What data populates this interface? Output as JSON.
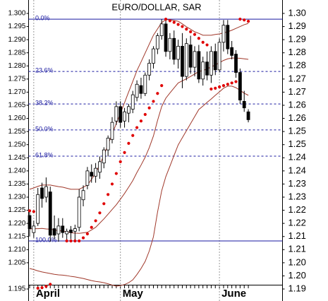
{
  "chart_data": {
    "type": "candlestick",
    "title": "EURO/DOLLAR, SAR",
    "categories": [
      null,
      "April",
      null,
      null,
      null,
      null,
      null,
      null,
      null,
      null,
      null,
      null,
      null,
      null,
      null,
      null,
      null,
      null,
      null,
      null,
      null,
      null,
      "May",
      null,
      null,
      null,
      null,
      null,
      null,
      null,
      null,
      null,
      null,
      null,
      null,
      null,
      null,
      null,
      null,
      null,
      null,
      null,
      null,
      null,
      null,
      null,
      "June",
      null,
      null,
      null,
      null,
      null,
      null,
      null
    ],
    "open": [
      1.223,
      1.2165,
      1.22,
      1.2335,
      1.23,
      1.232,
      1.218,
      1.216,
      1.219,
      1.216,
      1.2175,
      1.217,
      1.2185,
      1.229,
      1.2345,
      1.2395,
      1.238,
      1.2395,
      1.243,
      1.248,
      1.252,
      1.259,
      1.2645,
      1.259,
      1.262,
      1.2635,
      1.268,
      1.2725,
      1.2695,
      1.2765,
      1.281,
      1.2865,
      1.2915,
      1.296,
      1.2855,
      1.2905,
      1.2825,
      1.2875,
      1.276,
      1.288,
      1.2795,
      1.2855,
      1.275,
      1.2815,
      1.2765,
      1.2855,
      1.2785,
      1.289,
      1.2955,
      1.287,
      1.2845,
      1.2775,
      1.2665,
      1.2625
    ],
    "high": [
      1.225,
      1.221,
      1.2335,
      1.2355,
      1.2375,
      1.234,
      1.223,
      1.222,
      1.222,
      1.218,
      1.219,
      1.2195,
      1.233,
      1.2345,
      1.2415,
      1.2425,
      1.243,
      1.2455,
      1.249,
      1.2535,
      1.2605,
      1.2665,
      1.2665,
      1.264,
      1.2655,
      1.2705,
      1.2745,
      1.2755,
      1.2775,
      1.2825,
      1.2875,
      1.2925,
      1.2978,
      1.2975,
      1.2925,
      1.2935,
      1.29,
      1.2925,
      1.2905,
      1.2915,
      1.2875,
      1.288,
      1.2835,
      1.2855,
      1.2875,
      1.2885,
      1.2905,
      1.2975,
      1.2975,
      1.2895,
      1.286,
      1.279,
      1.2705,
      1.2635
    ],
    "low": [
      1.215,
      1.2145,
      1.219,
      1.226,
      1.228,
      1.213,
      1.214,
      1.213,
      1.2145,
      1.2135,
      1.214,
      1.2133,
      1.217,
      1.2265,
      1.233,
      1.2355,
      1.2355,
      1.237,
      1.241,
      1.2455,
      1.2505,
      1.2575,
      1.2565,
      1.2565,
      1.2585,
      1.262,
      1.2665,
      1.2675,
      1.2685,
      1.2745,
      1.279,
      1.2845,
      1.29,
      1.2835,
      1.2825,
      1.2805,
      1.279,
      1.2715,
      1.2745,
      1.277,
      1.276,
      1.2735,
      1.2725,
      1.2745,
      1.2735,
      1.2765,
      1.2775,
      1.2855,
      1.2845,
      1.2825,
      1.2755,
      1.2655,
      1.2625,
      1.2585
    ],
    "close": [
      1.218,
      1.219,
      1.231,
      1.2295,
      1.234,
      1.2155,
      1.2155,
      1.219,
      1.2165,
      1.217,
      1.2165,
      1.218,
      1.23,
      1.2325,
      1.24,
      1.238,
      1.241,
      1.2435,
      1.248,
      1.2525,
      1.2585,
      1.2645,
      1.2585,
      1.2625,
      1.2645,
      1.269,
      1.273,
      1.2695,
      1.2765,
      1.281,
      1.2865,
      1.2915,
      1.296,
      1.2855,
      1.2905,
      1.2825,
      1.2875,
      1.276,
      1.2885,
      1.2795,
      1.2855,
      1.275,
      1.2815,
      1.2765,
      1.2855,
      1.2785,
      1.289,
      1.2955,
      1.2865,
      1.284,
      1.2775,
      1.267,
      1.264,
      1.2595
    ],
    "up_color": "#ffffff",
    "down_color": "#000000",
    "bands": {
      "color": "#a0382a",
      "upper": [
        1.233,
        1.2335,
        1.2341,
        1.2346,
        1.2346,
        1.2346,
        1.2343,
        1.234,
        1.2338,
        1.2334,
        1.233,
        1.233,
        1.233,
        1.2338,
        1.2346,
        1.2368,
        1.2391,
        1.2425,
        1.2459,
        1.25,
        1.254,
        1.258,
        1.262,
        1.266,
        1.2701,
        1.2741,
        1.2782,
        1.2815,
        1.2849,
        1.2883,
        1.2917,
        1.2941,
        1.2965,
        1.2976,
        1.2976,
        1.2973,
        1.297,
        1.296,
        1.2949,
        1.294,
        1.293,
        1.2924,
        1.2917,
        1.2917,
        1.2917,
        1.292,
        1.2922,
        1.2926,
        1.293,
        1.2936,
        1.2943,
        1.295,
        1.2957,
        1.2962
      ],
      "middle": [
        1.2179,
        1.218,
        1.218,
        1.2181,
        1.2179,
        1.2178,
        1.2175,
        1.2172,
        1.2171,
        1.2168,
        1.2164,
        1.2163,
        1.2162,
        1.2164,
        1.2166,
        1.2175,
        1.2185,
        1.2201,
        1.2217,
        1.2235,
        1.2253,
        1.2271,
        1.2292,
        1.2314,
        1.2338,
        1.2363,
        1.2394,
        1.2422,
        1.2452,
        1.2489,
        1.2533,
        1.2592,
        1.2645,
        1.2677,
        1.2697,
        1.2716,
        1.2735,
        1.2743,
        1.2751,
        1.276,
        1.2769,
        1.2779,
        1.2782,
        1.2789,
        1.2796,
        1.2804,
        1.2812,
        1.2821,
        1.2827,
        1.283,
        1.283,
        1.2829,
        1.2827,
        1.2825
      ],
      "lower": [
        1.2028,
        1.2024,
        1.2019,
        1.2015,
        1.2012,
        1.2009,
        1.2006,
        1.2004,
        1.2003,
        1.2001,
        1.1998,
        1.1996,
        1.1993,
        1.199,
        1.1986,
        1.1982,
        1.1979,
        1.1977,
        1.1974,
        1.197,
        1.1965,
        1.1961,
        1.1963,
        1.1967,
        1.1974,
        1.1985,
        1.2005,
        1.2028,
        1.2055,
        1.2095,
        1.2149,
        1.2243,
        1.2324,
        1.2378,
        1.2418,
        1.2459,
        1.2499,
        1.2526,
        1.2553,
        1.258,
        1.2607,
        1.2634,
        1.2647,
        1.2661,
        1.2674,
        1.2688,
        1.2701,
        1.2715,
        1.2723,
        1.2723,
        1.2717,
        1.2707,
        1.2696,
        1.2688
      ]
    },
    "sar": {
      "color": "#e00000",
      "values": [
        1.2248,
        1.2245,
        1.1953,
        1.1955,
        1.196,
        1.1968,
        null,
        null,
        null,
        1.2133,
        1.2133,
        1.2133,
        1.2133,
        1.2145,
        1.216,
        1.2185,
        1.221,
        1.224,
        1.2275,
        1.231,
        1.235,
        1.239,
        1.2435,
        1.247,
        1.2505,
        1.2535,
        1.2565,
        1.259,
        1.2615,
        1.264,
        1.2665,
        1.2695,
        1.2725,
        1.2978,
        1.2972,
        1.2966,
        1.2958,
        1.295,
        1.294,
        1.293,
        1.292,
        1.2905,
        1.289,
        1.288,
        1.2712,
        1.2715,
        1.272,
        1.2725,
        1.273,
        1.2735,
        1.274,
        1.2978,
        1.2975,
        1.297
      ]
    },
    "fib_levels": [
      {
        "label": "0.0%",
        "value": 1.2978,
        "style": "solid"
      },
      {
        "label": "23.6%",
        "value": 1.2779,
        "style": "dashed"
      },
      {
        "label": "38.2%",
        "value": 1.2655,
        "style": "dashed"
      },
      {
        "label": "50.0%",
        "value": 1.2556,
        "style": "dashed"
      },
      {
        "label": "61.8%",
        "value": 1.2456,
        "style": "dashed"
      },
      {
        "label": "100.0%",
        "value": 1.2133,
        "style": "solid"
      }
    ],
    "fib_color": "#1a1aa0",
    "ylim": [
      1.1925,
      1.3025
    ],
    "yticks": [
      {
        "value": 1.3,
        "label": "1.300"
      },
      {
        "value": 1.295,
        "label": "1.295"
      },
      {
        "value": 1.29,
        "label": "1.290"
      },
      {
        "value": 1.285,
        "label": "1.285"
      },
      {
        "value": 1.28,
        "label": "1.280"
      },
      {
        "value": 1.275,
        "label": "1.275"
      },
      {
        "value": 1.27,
        "label": "1.270"
      },
      {
        "value": 1.265,
        "label": "1.265"
      },
      {
        "value": 1.26,
        "label": "1.260"
      },
      {
        "value": 1.255,
        "label": "1.255"
      },
      {
        "value": 1.25,
        "label": "1.250"
      },
      {
        "value": 1.245,
        "label": "1.245"
      },
      {
        "value": 1.24,
        "label": "1.240"
      },
      {
        "value": 1.235,
        "label": "1.235"
      },
      {
        "value": 1.23,
        "label": "1.230"
      },
      {
        "value": 1.225,
        "label": "1.225"
      },
      {
        "value": 1.22,
        "label": "1.220"
      },
      {
        "value": 1.215,
        "label": "1.215"
      },
      {
        "value": 1.21,
        "label": "1.210"
      },
      {
        "value": 1.205,
        "label": "1.205"
      },
      {
        "value": 1.195,
        "label": "1.195"
      }
    ],
    "y2lim": [
      1.1925,
      1.3025
    ],
    "y2ticks": [
      {
        "value": 1.3,
        "label": "1.30"
      },
      {
        "value": 1.295,
        "label": "1.29"
      },
      {
        "value": 1.29,
        "label": "1.29"
      },
      {
        "value": 1.285,
        "label": "1.28"
      },
      {
        "value": 1.28,
        "label": "1.28"
      },
      {
        "value": 1.275,
        "label": "1.27"
      },
      {
        "value": 1.27,
        "label": "1.27"
      },
      {
        "value": 1.265,
        "label": "1.26"
      },
      {
        "value": 1.26,
        "label": "1.26"
      },
      {
        "value": 1.255,
        "label": "1.25"
      },
      {
        "value": 1.25,
        "label": "1.25"
      },
      {
        "value": 1.245,
        "label": "1.24"
      },
      {
        "value": 1.24,
        "label": "1.24"
      },
      {
        "value": 1.235,
        "label": "1.23"
      },
      {
        "value": 1.23,
        "label": "1.23"
      },
      {
        "value": 1.225,
        "label": "1.22"
      },
      {
        "value": 1.22,
        "label": "1.22"
      },
      {
        "value": 1.215,
        "label": "1.21"
      },
      {
        "value": 1.21,
        "label": "1.21"
      },
      {
        "value": 1.205,
        "label": "1.20"
      },
      {
        "value": 1.2,
        "label": "1.20"
      },
      {
        "value": 1.195,
        "label": "1.19"
      }
    ]
  }
}
